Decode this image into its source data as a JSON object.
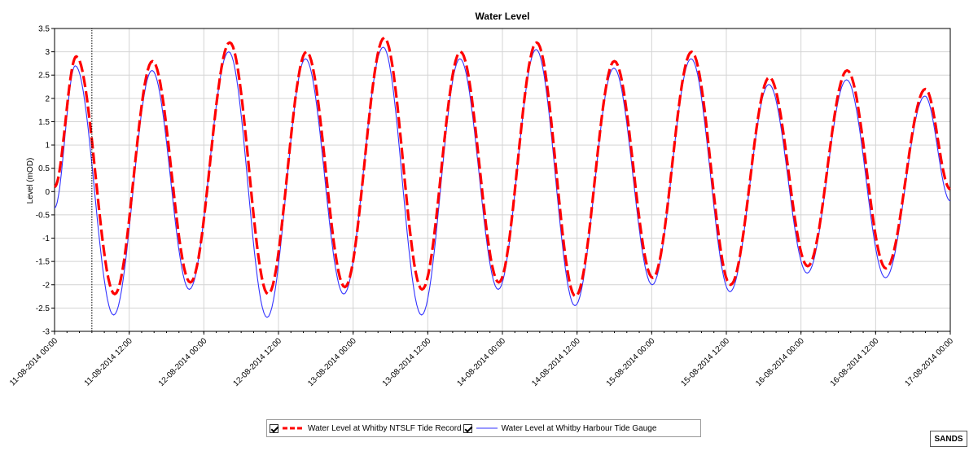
{
  "chart_data": {
    "type": "line",
    "title": "Water Level",
    "ylabel": "Level (mOD)",
    "xlabel": "",
    "ylim": [
      -3,
      3.5
    ],
    "yticks": [
      "3.5",
      "3",
      "2.5",
      "2",
      "1.5",
      "1",
      "0.5",
      "0",
      "-0.5",
      "-1",
      "-1.5",
      "-2",
      "-2.5",
      "-3"
    ],
    "xlim": [
      "11-08-2014 00:00",
      "17-08-2014 00:00"
    ],
    "xtick_labels": [
      "11-08-2014 00:00",
      "11-08-2014 12:00",
      "12-08-2014 00:00",
      "12-08-2014 12:00",
      "13-08-2014 00:00",
      "13-08-2014 12:00",
      "14-08-2014 00:00",
      "14-08-2014 12:00",
      "15-08-2014 00:00",
      "15-08-2014 12:00",
      "16-08-2014 00:00",
      "16-08-2014 12:00",
      "17-08-2014 00:00"
    ],
    "cursor_x": "11-08-2014 06:00",
    "grid": true,
    "legend_position": "bottom",
    "series": [
      {
        "name": "Water Level at Whitby NTSLF Tide Record",
        "color": "#ff0000",
        "style": "dashed-thick",
        "extrema": [
          {
            "t": "11-08-2014 00:00",
            "v": 0.1
          },
          {
            "t": "11-08-2014 03:30",
            "v": 2.9
          },
          {
            "t": "11-08-2014 09:40",
            "v": -2.2
          },
          {
            "t": "11-08-2014 15:45",
            "v": 2.8
          },
          {
            "t": "11-08-2014 21:50",
            "v": -1.95
          },
          {
            "t": "12-08-2014 04:10",
            "v": 3.2
          },
          {
            "t": "12-08-2014 10:20",
            "v": -2.2
          },
          {
            "t": "12-08-2014 16:30",
            "v": 3.0
          },
          {
            "t": "12-08-2014 22:40",
            "v": -2.05
          },
          {
            "t": "13-08-2014 05:00",
            "v": 3.3
          },
          {
            "t": "13-08-2014 11:05",
            "v": -2.1
          },
          {
            "t": "13-08-2014 17:15",
            "v": 3.0
          },
          {
            "t": "13-08-2014 23:25",
            "v": -1.95
          },
          {
            "t": "14-08-2014 05:30",
            "v": 3.2
          },
          {
            "t": "14-08-2014 11:45",
            "v": -2.25
          },
          {
            "t": "14-08-2014 18:00",
            "v": 2.8
          },
          {
            "t": "15-08-2014 00:10",
            "v": -1.85
          },
          {
            "t": "15-08-2014 06:25",
            "v": 3.0
          },
          {
            "t": "15-08-2014 12:40",
            "v": -2.0
          },
          {
            "t": "15-08-2014 18:55",
            "v": 2.45
          },
          {
            "t": "16-08-2014 01:05",
            "v": -1.6
          },
          {
            "t": "16-08-2014 07:25",
            "v": 2.6
          },
          {
            "t": "16-08-2014 13:40",
            "v": -1.65
          },
          {
            "t": "16-08-2014 20:00",
            "v": 2.2
          },
          {
            "t": "17-08-2014 00:00",
            "v": 0.05
          }
        ]
      },
      {
        "name": "Water Level at Whitby Harbour Tide Gauge",
        "color": "#3333ff",
        "style": "solid-thin",
        "extrema": [
          {
            "t": "11-08-2014 00:00",
            "v": -0.35
          },
          {
            "t": "11-08-2014 03:20",
            "v": 2.7
          },
          {
            "t": "11-08-2014 09:30",
            "v": -2.65
          },
          {
            "t": "11-08-2014 15:40",
            "v": 2.6
          },
          {
            "t": "11-08-2014 21:40",
            "v": -2.1
          },
          {
            "t": "12-08-2014 04:00",
            "v": 3.0
          },
          {
            "t": "12-08-2014 10:10",
            "v": -2.7
          },
          {
            "t": "12-08-2014 16:20",
            "v": 2.85
          },
          {
            "t": "12-08-2014 22:30",
            "v": -2.2
          },
          {
            "t": "13-08-2014 04:50",
            "v": 3.1
          },
          {
            "t": "13-08-2014 11:00",
            "v": -2.65
          },
          {
            "t": "13-08-2014 17:10",
            "v": 2.85
          },
          {
            "t": "13-08-2014 23:20",
            "v": -2.1
          },
          {
            "t": "14-08-2014 05:25",
            "v": 3.05
          },
          {
            "t": "14-08-2014 11:40",
            "v": -2.45
          },
          {
            "t": "14-08-2014 17:55",
            "v": 2.65
          },
          {
            "t": "15-08-2014 00:05",
            "v": -2.0
          },
          {
            "t": "15-08-2014 06:20",
            "v": 2.85
          },
          {
            "t": "15-08-2014 12:35",
            "v": -2.15
          },
          {
            "t": "15-08-2014 18:50",
            "v": 2.3
          },
          {
            "t": "16-08-2014 01:00",
            "v": -1.75
          },
          {
            "t": "16-08-2014 07:20",
            "v": 2.4
          },
          {
            "t": "16-08-2014 13:35",
            "v": -1.85
          },
          {
            "t": "16-08-2014 19:55",
            "v": 2.05
          },
          {
            "t": "17-08-2014 00:00",
            "v": -0.2
          }
        ]
      }
    ]
  },
  "watermark": "SANDS"
}
